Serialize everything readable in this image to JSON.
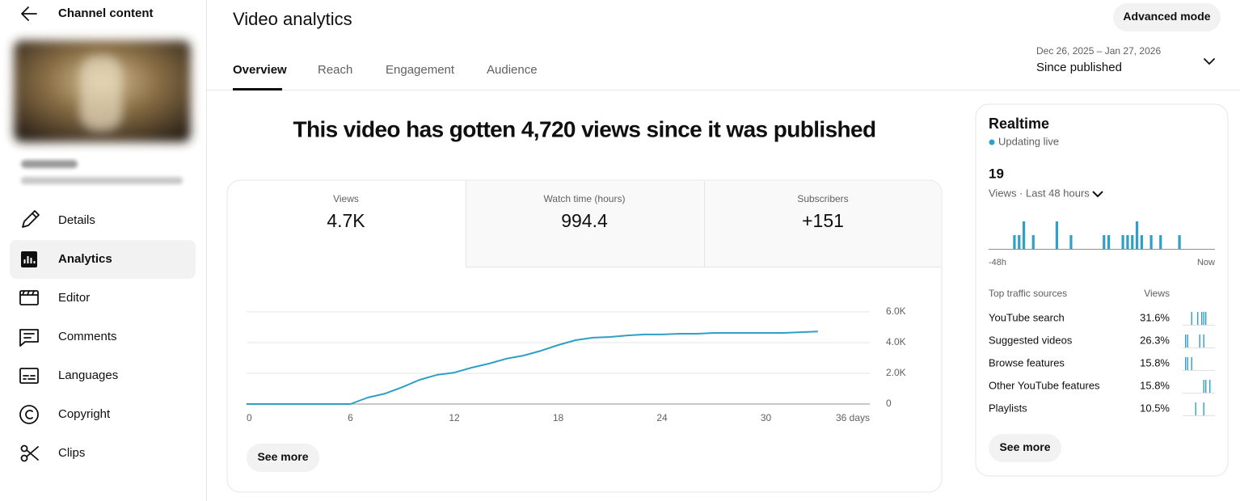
{
  "sidebar": {
    "title": "Channel content",
    "nav": [
      "Details",
      "Analytics",
      "Editor",
      "Comments",
      "Languages",
      "Copyright",
      "Clips"
    ],
    "active": 1
  },
  "header": {
    "title": "Video analytics",
    "button": "Advanced mode",
    "tabs": [
      "Overview",
      "Reach",
      "Engagement",
      "Audience"
    ],
    "date_range": "Dec 26, 2025 – Jan 27, 2026",
    "period": "Since published"
  },
  "headline": "This video has gotten 4,720 views since it was published",
  "metrics": [
    {
      "label": "Views",
      "value": "4.7K"
    },
    {
      "label": "Watch time (hours)",
      "value": "994.4"
    },
    {
      "label": "Subscribers",
      "value": "+151"
    }
  ],
  "see_more": "See more",
  "chart_data": [
    {
      "type": "line",
      "x": [
        0,
        1,
        2,
        3,
        4,
        5,
        6,
        7,
        8,
        9,
        10,
        11,
        12,
        13,
        14,
        15,
        16,
        17,
        18,
        19,
        20,
        21,
        22,
        23,
        24,
        25,
        26,
        27,
        28,
        29,
        30,
        31,
        32,
        33
      ],
      "series": [
        {
          "color": "#2f9fc6",
          "values": [
            0,
            0,
            0,
            0,
            0,
            0,
            0,
            420,
            680,
            1100,
            1580,
            1900,
            2050,
            2370,
            2630,
            2950,
            3160,
            3470,
            3840,
            4160,
            4320,
            4370,
            4470,
            4530,
            4530,
            4580,
            4580,
            4630,
            4630,
            4630,
            4630,
            4630,
            4680,
            4720
          ]
        }
      ],
      "xlim": [
        0,
        36
      ],
      "xticks": [
        0,
        6,
        12,
        18,
        24,
        30,
        {
          "value": 36,
          "label": "36 days"
        }
      ],
      "ylim": [
        0,
        6000
      ],
      "yticks": [
        0,
        {
          "value": 2000,
          "label": "2.0K"
        },
        {
          "value": 4000,
          "label": "4.0K"
        },
        {
          "value": 6000,
          "label": "6.0K"
        }
      ],
      "grid": true
    },
    {
      "type": "bar",
      "color": "#2f9fc6",
      "categories": [
        "-48h",
        null,
        null,
        null,
        null,
        null,
        null,
        null,
        null,
        null,
        null,
        null,
        null,
        null,
        null,
        null,
        null,
        null,
        null,
        null,
        null,
        null,
        null,
        null,
        null,
        null,
        null,
        null,
        null,
        null,
        null,
        null,
        null,
        null,
        null,
        null,
        null,
        null,
        null,
        null,
        null,
        null,
        null,
        null,
        null,
        null,
        null,
        "Now"
      ],
      "values": [
        0,
        0,
        0,
        0,
        0,
        1,
        1,
        2,
        0,
        1,
        0,
        0,
        0,
        0,
        2,
        0,
        0,
        1,
        0,
        0,
        0,
        0,
        0,
        0,
        1,
        1,
        0,
        0,
        1,
        1,
        1,
        2,
        1,
        0,
        1,
        0,
        1,
        0,
        0,
        0,
        1,
        0,
        0,
        0,
        0,
        0,
        0,
        0
      ]
    }
  ],
  "realtime": {
    "title": "Realtime",
    "status": "Updating live",
    "count": "19",
    "period": "Views · Last 48 hours",
    "traffic_title": "Top traffic sources",
    "traffic_column": "Views",
    "sources": [
      {
        "name": "YouTube search",
        "share": "31.6%",
        "trend": [
          0,
          0,
          0,
          0,
          1,
          0,
          0,
          1,
          0,
          1,
          1,
          1,
          0,
          0,
          0,
          0
        ]
      },
      {
        "name": "Suggested videos",
        "share": "26.3%",
        "trend": [
          0,
          1,
          1,
          0,
          0,
          0,
          0,
          0,
          1,
          0,
          1,
          0,
          0,
          0,
          0,
          0
        ]
      },
      {
        "name": "Browse features",
        "share": "15.8%",
        "trend": [
          0,
          1,
          1,
          0,
          1,
          0,
          0,
          0,
          0,
          0,
          0,
          0,
          0,
          0,
          0,
          0
        ]
      },
      {
        "name": "Other YouTube features",
        "share": "15.8%",
        "trend": [
          0,
          0,
          0,
          0,
          0,
          0,
          0,
          0,
          0,
          0,
          1,
          1,
          0,
          1,
          0,
          0
        ]
      },
      {
        "name": "Playlists",
        "share": "10.5%",
        "trend": [
          0,
          0,
          0,
          0,
          0,
          0,
          1,
          0,
          0,
          0,
          1,
          0,
          0,
          0,
          0,
          0
        ]
      }
    ]
  }
}
